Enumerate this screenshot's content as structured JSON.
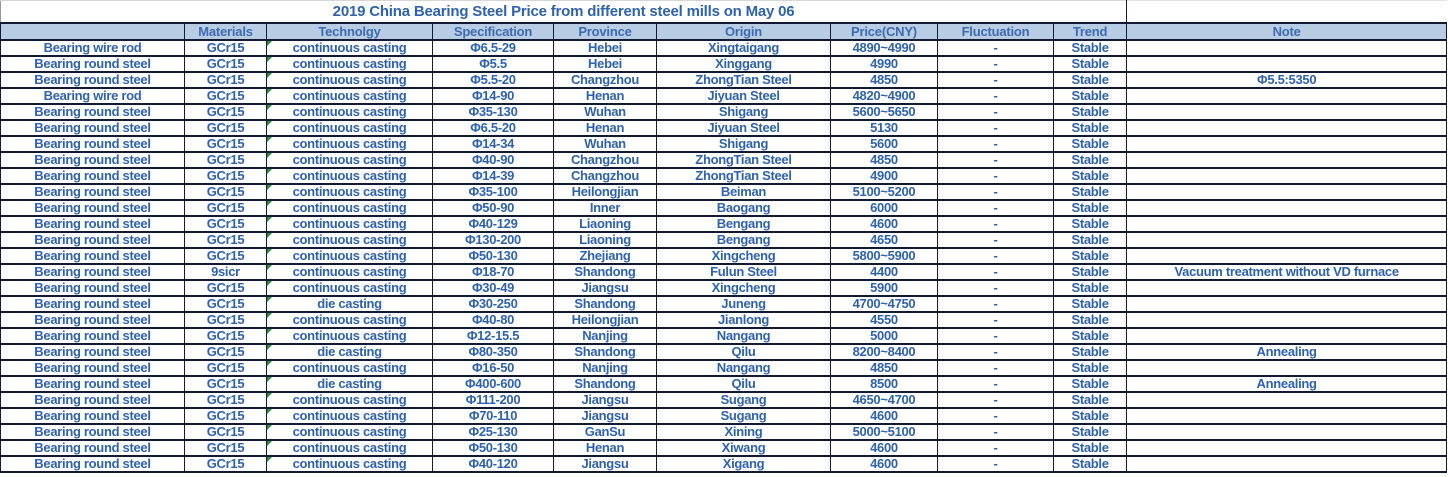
{
  "title": "2019 China Bearing Steel Price from different steel mills on May 06",
  "colors": {
    "header_bg": "#b8cce4",
    "header_text": "#3c6bb0",
    "text_blue": "#2e62ae",
    "border": "#121a33",
    "indicator_green": "#2e8b2e"
  },
  "columns": [
    "",
    "Materials",
    "Technolgy",
    "Specification",
    "Province",
    "Origin",
    "Price(CNY)",
    "Fluctuation",
    "Trend",
    "Note"
  ],
  "column_keys": [
    "product",
    "materials",
    "technology",
    "specification",
    "province",
    "origin",
    "price",
    "fluctuation",
    "trend",
    "note"
  ],
  "table": {
    "rows": [
      [
        "Bearing wire rod",
        "GCr15",
        "continuous casting",
        "Φ6.5-29",
        "Hebei",
        "Xingtaigang",
        "4890~4990",
        "-",
        "Stable",
        ""
      ],
      [
        "Bearing round steel",
        "GCr15",
        "continuous casting",
        "Φ5.5",
        "Hebei",
        "Xinggang",
        "4990",
        "-",
        "Stable",
        ""
      ],
      [
        "Bearing round steel",
        "GCr15",
        "continuous casting",
        "Φ5.5-20",
        "Changzhou",
        "ZhongTian Steel",
        "4850",
        "-",
        "Stable",
        "Φ5.5:5350"
      ],
      [
        "Bearing wire rod",
        "GCr15",
        "continuous casting",
        "Φ14-90",
        "Henan",
        "Jiyuan Steel",
        "4820~4900",
        "-",
        "Stable",
        ""
      ],
      [
        "Bearing round steel",
        "GCr15",
        "continuous casting",
        "Φ35-130",
        "Wuhan",
        "Shigang",
        "5600~5650",
        "-",
        "Stable",
        ""
      ],
      [
        "Bearing round steel",
        "GCr15",
        "continuous casting",
        "Φ6.5-20",
        "Henan",
        "Jiyuan Steel",
        "5130",
        "-",
        "Stable",
        ""
      ],
      [
        "Bearing round steel",
        "GCr15",
        "continuous casting",
        "Φ14-34",
        "Wuhan",
        "Shigang",
        "5600",
        "-",
        "Stable",
        ""
      ],
      [
        "Bearing round steel",
        "GCr15",
        "continuous casting",
        "Φ40-90",
        "Changzhou",
        "ZhongTian Steel",
        "4850",
        "-",
        "Stable",
        ""
      ],
      [
        "Bearing round steel",
        "GCr15",
        "continuous casting",
        "Φ14-39",
        "Changzhou",
        "ZhongTian Steel",
        "4900",
        "-",
        "Stable",
        ""
      ],
      [
        "Bearing round steel",
        "GCr15",
        "continuous casting",
        "Φ35-100",
        "Heilongjian",
        "Beiman",
        "5100~5200",
        "-",
        "Stable",
        ""
      ],
      [
        "Bearing round steel",
        "GCr15",
        "continuous casting",
        "Φ50-90",
        "Inner",
        "Baogang",
        "6000",
        "-",
        "Stable",
        ""
      ],
      [
        "Bearing round steel",
        "GCr15",
        "continuous casting",
        "Φ40-129",
        "Liaoning",
        "Bengang",
        "4600",
        "-",
        "Stable",
        ""
      ],
      [
        "Bearing round steel",
        "GCr15",
        "continuous casting",
        "Φ130-200",
        "Liaoning",
        "Bengang",
        "4650",
        "-",
        "Stable",
        ""
      ],
      [
        "Bearing round steel",
        "GCr15",
        "continuous casting",
        "Φ50-130",
        "Zhejiang",
        "Xingcheng",
        "5800~5900",
        "-",
        "Stable",
        ""
      ],
      [
        "Bearing round steel",
        "9sicr",
        "continuous casting",
        "Φ18-70",
        "Shandong",
        "Fulun Steel",
        "4400",
        "-",
        "Stable",
        "Vacuum treatment without VD furnace"
      ],
      [
        "Bearing round steel",
        "GCr15",
        "continuous casting",
        "Φ30-49",
        "Jiangsu",
        "Xingcheng",
        "5900",
        "-",
        "Stable",
        ""
      ],
      [
        "Bearing round steel",
        "GCr15",
        "die casting",
        "Φ30-250",
        "Shandong",
        "Juneng",
        "4700~4750",
        "-",
        "Stable",
        ""
      ],
      [
        "Bearing round steel",
        "GCr15",
        "continuous casting",
        "Φ40-80",
        "Heilongjian",
        "Jianlong",
        "4550",
        "-",
        "Stable",
        ""
      ],
      [
        "Bearing round steel",
        "GCr15",
        "continuous casting",
        "Φ12-15.5",
        "Nanjing",
        "Nangang",
        "5000",
        "-",
        "Stable",
        ""
      ],
      [
        "Bearing round steel",
        "GCr15",
        "die casting",
        "Φ80-350",
        "Shandong",
        "Qilu",
        "8200~8400",
        "-",
        "Stable",
        "Annealing"
      ],
      [
        "Bearing round steel",
        "GCr15",
        "continuous casting",
        "Φ16-50",
        "Nanjing",
        "Nangang",
        "4850",
        "-",
        "Stable",
        ""
      ],
      [
        "Bearing round steel",
        "GCr15",
        "die casting",
        "Φ400-600",
        "Shandong",
        "Qilu",
        "8500",
        "-",
        "Stable",
        "Annealing"
      ],
      [
        "Bearing round steel",
        "GCr15",
        "continuous casting",
        "Φ111-200",
        "Jiangsu",
        "Sugang",
        "4650~4700",
        "-",
        "Stable",
        ""
      ],
      [
        "Bearing round steel",
        "GCr15",
        "continuous casting",
        "Φ70-110",
        "Jiangsu",
        "Sugang",
        "4600",
        "-",
        "Stable",
        ""
      ],
      [
        "Bearing round steel",
        "GCr15",
        "continuous casting",
        "Φ25-130",
        "GanSu",
        "Xining",
        "5000~5100",
        "-",
        "Stable",
        ""
      ],
      [
        "Bearing round steel",
        "GCr15",
        "continuous casting",
        "Φ50-130",
        "Henan",
        "Xiwang",
        "4600",
        "-",
        "Stable",
        ""
      ],
      [
        "Bearing round steel",
        "GCr15",
        "continuous casting",
        "Φ40-120",
        "Jiangsu",
        "Xigang",
        "4600",
        "-",
        "Stable",
        ""
      ]
    ]
  }
}
